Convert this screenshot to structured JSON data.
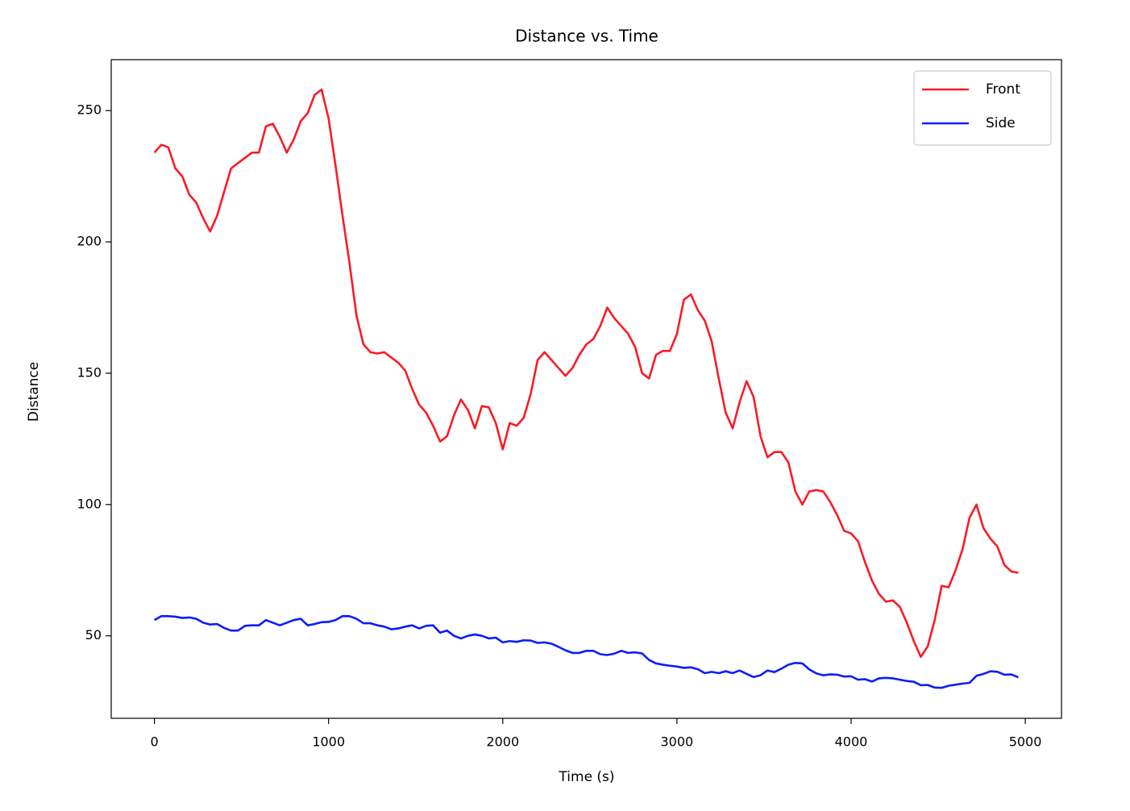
{
  "chart_data": {
    "type": "line",
    "title": "Distance vs. Time",
    "xlabel": "Time (s)",
    "ylabel": "Distance",
    "x": [
      0,
      40,
      80,
      120,
      160,
      200,
      240,
      280,
      320,
      360,
      400,
      440,
      480,
      520,
      560,
      600,
      640,
      680,
      720,
      760,
      800,
      840,
      880,
      920,
      960,
      1000,
      1040,
      1080,
      1120,
      1160,
      1200,
      1240,
      1280,
      1320,
      1360,
      1400,
      1440,
      1480,
      1520,
      1560,
      1600,
      1640,
      1680,
      1720,
      1760,
      1800,
      1840,
      1880,
      1920,
      1960,
      2000,
      2040,
      2080,
      2120,
      2160,
      2200,
      2240,
      2280,
      2320,
      2360,
      2400,
      2440,
      2480,
      2520,
      2560,
      2600,
      2640,
      2680,
      2720,
      2760,
      2800,
      2840,
      2880,
      2920,
      2960,
      3000,
      3040,
      3080,
      3120,
      3160,
      3200,
      3240,
      3280,
      3320,
      3360,
      3400,
      3440,
      3480,
      3520,
      3560,
      3600,
      3640,
      3680,
      3720,
      3760,
      3800,
      3840,
      3880,
      3920,
      3960,
      4000,
      4040,
      4080,
      4120,
      4160,
      4200,
      4240,
      4280,
      4320,
      4360,
      4400,
      4440,
      4480,
      4520,
      4560,
      4600,
      4640,
      4680,
      4720,
      4760,
      4800,
      4840,
      4880,
      4920,
      4960
    ],
    "series": [
      {
        "name": "Front",
        "color": "#fb1a25",
        "values": [
          234,
          237,
          236,
          228,
          225,
          218,
          215,
          209,
          204,
          210,
          219,
          228,
          230,
          232,
          234,
          234,
          244,
          245,
          240,
          234,
          239,
          246,
          249,
          256,
          258,
          247,
          229,
          210,
          192,
          172,
          161,
          158,
          157.5,
          158,
          156,
          154,
          151,
          144,
          138,
          135,
          130,
          124,
          126,
          134,
          140,
          136,
          129,
          137.5,
          137,
          131,
          121,
          131,
          130,
          133,
          142,
          155,
          158,
          155,
          152,
          149,
          152,
          157,
          161,
          163,
          168,
          175,
          171,
          168,
          165,
          160,
          150,
          148,
          157,
          158.5,
          158.5,
          165,
          178,
          180,
          174,
          170,
          162,
          148,
          135,
          129,
          139,
          147,
          141,
          126,
          118,
          120,
          120,
          116,
          105,
          100,
          105,
          105.5,
          105,
          101,
          96,
          90,
          89,
          86,
          78,
          71,
          66,
          63,
          63.5,
          61,
          55,
          48,
          42,
          46,
          56,
          69,
          68.5,
          75,
          83,
          95,
          100,
          91,
          87,
          84,
          77,
          74.5,
          74
        ]
      },
      {
        "name": "Side",
        "color": "#0a1dfa",
        "values": [
          56,
          57.5,
          57.5,
          57.3,
          56.8,
          57,
          56.5,
          55,
          54.3,
          54.5,
          53,
          52,
          52,
          53.8,
          54,
          54,
          56,
          55,
          54,
          55,
          56,
          56.5,
          54,
          54.5,
          55.2,
          55.3,
          56,
          57.5,
          57.5,
          56.5,
          54.8,
          54.8,
          54,
          53.5,
          52.5,
          52.8,
          53.5,
          54,
          52.8,
          53.8,
          54,
          51.2,
          52,
          50,
          49,
          50,
          50.5,
          50,
          49,
          49.3,
          47.5,
          48,
          47.7,
          48.3,
          48.2,
          47.3,
          47.5,
          47,
          45.8,
          44.5,
          43.5,
          43.5,
          44.3,
          44.3,
          43,
          42.7,
          43.2,
          44.3,
          43.5,
          43.7,
          43.3,
          40.8,
          39.5,
          39,
          38.6,
          38.3,
          37.8,
          38,
          37.3,
          35.8,
          36.3,
          35.8,
          36.5,
          35.8,
          36.8,
          35.5,
          34.3,
          35,
          36.8,
          36.2,
          37.5,
          39,
          39.7,
          39.5,
          37.2,
          35.7,
          35,
          35.3,
          35.2,
          34.5,
          34.6,
          33.3,
          33.5,
          32.6,
          33.8,
          34,
          33.8,
          33.3,
          32.8,
          32.5,
          31.2,
          31.3,
          30.3,
          30.2,
          31,
          31.4,
          31.8,
          32.1,
          34.8,
          35.5,
          36.5,
          36.3,
          35.2,
          35.3,
          34.2
        ]
      }
    ],
    "xlim": [
      -248,
      5208
    ],
    "ylim": [
      18.6,
      269.4
    ],
    "xticks": [
      0,
      1000,
      2000,
      3000,
      4000,
      5000
    ],
    "yticks": [
      50,
      100,
      150,
      200,
      250
    ],
    "grid": false,
    "legend": "upper right"
  }
}
